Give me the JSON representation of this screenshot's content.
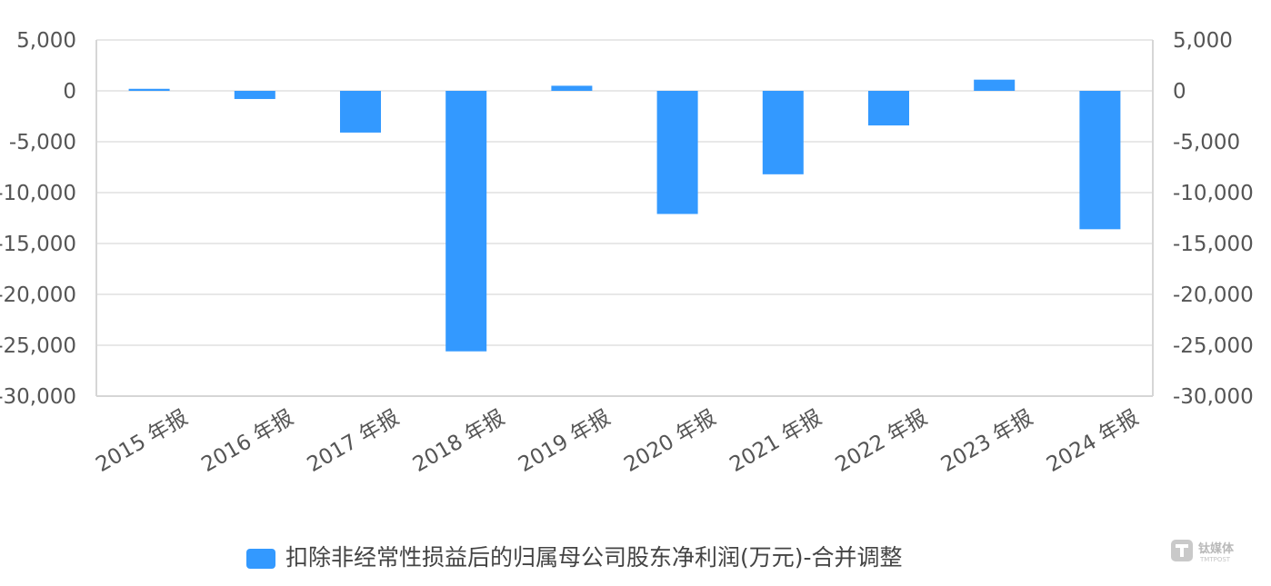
{
  "chart_data": {
    "type": "bar",
    "categories": [
      "2015 年报",
      "2016 年报",
      "2017 年报",
      "2018 年报",
      "2019 年报",
      "2020 年报",
      "2021 年报",
      "2022 年报",
      "2023 年报",
      "2024 年报"
    ],
    "series": [
      {
        "name": "扣除非经常性损益后的归属母公司股东净利润(万元)-合并调整",
        "values": [
          200,
          -800,
          -4100,
          -25600,
          500,
          -12100,
          -8200,
          -3400,
          1100,
          -13600
        ],
        "color": "#3399ff"
      }
    ],
    "ylim": [
      -30000,
      5000
    ],
    "yticks": [
      5000,
      0,
      -5000,
      -10000,
      -15000,
      -20000,
      -25000,
      -30000
    ],
    "ytick_labels": [
      "5,000",
      "0",
      "-5,000",
      "-10,000",
      "-15,000",
      "-20,000",
      "-25,000",
      "-30,000"
    ],
    "secondary_axis": true,
    "grid": true,
    "legend_position": "bottom-center",
    "xtick_rotation": "angled"
  },
  "watermark": {
    "text": "钛媒体",
    "subtext": "TMTPOST",
    "icon": "tmtpost-logo-icon"
  }
}
